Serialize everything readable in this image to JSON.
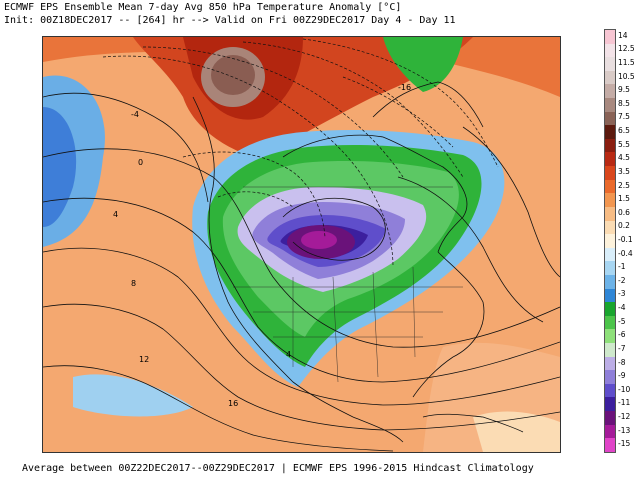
{
  "header": {
    "line1": "ECMWF EPS Ensemble Mean 7-day Avg 850 hPa Temperature Anomaly [°C]",
    "line2": "Init: 00Z18DEC2017 -- [264] hr --> Valid on Fri 00Z29DEC2017  Day 4 - Day 11"
  },
  "footer": {
    "text": "Average between 00Z22DEC2017--00Z29DEC2017 | ECMWF EPS 1996-2015 Hindcast Climatology"
  },
  "colorbar": {
    "labels": [
      "14",
      "12.5",
      "11.5",
      "10.5",
      "9.5",
      "8.5",
      "7.5",
      "6.5",
      "5.5",
      "4.5",
      "3.5",
      "2.5",
      "1.5",
      "0.6",
      "0.2",
      "-0.1",
      "-0.4",
      "-1",
      "-2",
      "-3",
      "-4",
      "-5",
      "-6",
      "-7",
      "-8",
      "-9",
      "-10",
      "-11",
      "-12",
      "-13",
      "-15"
    ],
    "colors": [
      "#f7c6d3",
      "#f3e3e8",
      "#e9dfe0",
      "#d9cbc7",
      "#c4aca6",
      "#a8897f",
      "#8a6357",
      "#5c1a0e",
      "#8a1e10",
      "#b82a14",
      "#d9461c",
      "#ea6a2c",
      "#f29650",
      "#f7bc84",
      "#fbdcb4",
      "#fdf2dc",
      "#d9eefa",
      "#a8d6f2",
      "#6db3e8",
      "#2f86d6",
      "#19a52e",
      "#4cc44a",
      "#8ee07a",
      "#cfe9cc",
      "#bcaee6",
      "#8f7fd9",
      "#5f4ecb",
      "#3c1f9e",
      "#6a127a",
      "#a41b99",
      "#e044c8"
    ]
  },
  "map": {
    "contour_labels": [
      "-4",
      "-16",
      "0",
      "4",
      "8",
      "12",
      "16",
      "4"
    ],
    "palette": {
      "ocean_warm": "#f2a46a",
      "deep_red": "#c2361a",
      "brown_core": "#8a5d52",
      "anomaly_cold_green": "#2fb33a",
      "anomaly_cold_purple": "#6a1c8a",
      "pacific_blue": "#3e7ed8"
    }
  }
}
